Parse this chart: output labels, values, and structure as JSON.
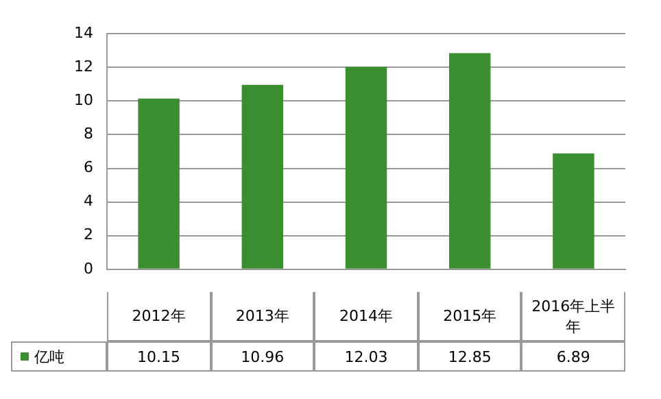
{
  "chart_data": {
    "type": "bar",
    "categories": [
      "2012年",
      "2013年",
      "2014年",
      "2015年",
      "2016年上半年"
    ],
    "series": [
      {
        "name": "亿吨",
        "color": "#3c8f30",
        "values": [
          10.15,
          10.96,
          12.03,
          12.85,
          6.89
        ]
      }
    ],
    "ylim": [
      0,
      14
    ],
    "yticks": [
      0,
      2,
      4,
      6,
      8,
      10,
      12,
      14
    ],
    "grid": "y",
    "legend": "bottom",
    "data_labels": true
  }
}
